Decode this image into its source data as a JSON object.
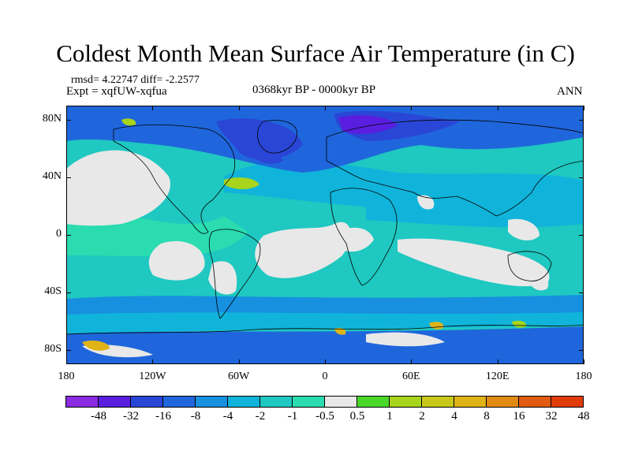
{
  "figure": {
    "title": "Coldest Month Mean Surface Air Temperature (in C)",
    "stats": "rmsd= 4.22747 diff= -2.2577",
    "experiment": "Expt = xqfUW-xqfua",
    "period": "0368kyr BP - 0000kyr BP",
    "season": "ANN"
  },
  "map": {
    "projection": "cylindrical-equidistant",
    "lon_range": [
      -180,
      180
    ],
    "lat_range": [
      -90,
      90
    ],
    "lat_ticks": [
      {
        "value": 80,
        "label": "80N"
      },
      {
        "value": 40,
        "label": "40N"
      },
      {
        "value": 0,
        "label": "0"
      },
      {
        "value": -40,
        "label": "40S"
      },
      {
        "value": -80,
        "label": "80S"
      }
    ],
    "lon_ticks": [
      {
        "value": -180,
        "label": "180"
      },
      {
        "value": -120,
        "label": "120W"
      },
      {
        "value": -60,
        "label": "60W"
      },
      {
        "value": 0,
        "label": "0"
      },
      {
        "value": 60,
        "label": "60E"
      },
      {
        "value": 120,
        "label": "120E"
      },
      {
        "value": 180,
        "label": "180"
      }
    ],
    "background_color": "#1fc8c0",
    "coastline_color": "#000000"
  },
  "colorbar": {
    "colors": [
      "#8a2be2",
      "#5a1ee0",
      "#2a46d6",
      "#1f66dc",
      "#1790e0",
      "#10b4da",
      "#1fc8c0",
      "#2adcb0",
      "#e8e8e8",
      "#49d82a",
      "#a8d41c",
      "#c8c81a",
      "#e0b417",
      "#e08a14",
      "#e05a10",
      "#e03c0a"
    ],
    "labels": [
      "-48",
      "-32",
      "-16",
      "-8",
      "-4",
      "-2",
      "-1",
      "-0.5",
      "0.5",
      "1",
      "2",
      "4",
      "8",
      "16",
      "32",
      "48"
    ]
  }
}
